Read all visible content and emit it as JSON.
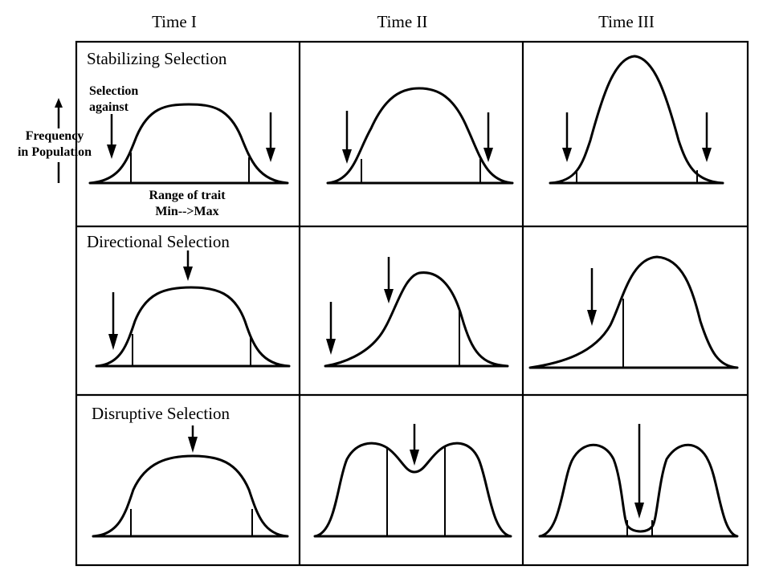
{
  "columns": [
    {
      "label": "Time I"
    },
    {
      "label": "Time II"
    },
    {
      "label": "Time III"
    }
  ],
  "rows": [
    {
      "label": "Stabilizing Selection"
    },
    {
      "label": "Directional Selection"
    },
    {
      "label": "Disruptive Selection"
    }
  ],
  "annotations": {
    "selection_against": [
      "Selection",
      "against"
    ],
    "y_axis": [
      "Frequency",
      "in Population"
    ],
    "x_axis": [
      "Range of trait",
      "Min-->Max"
    ]
  }
}
